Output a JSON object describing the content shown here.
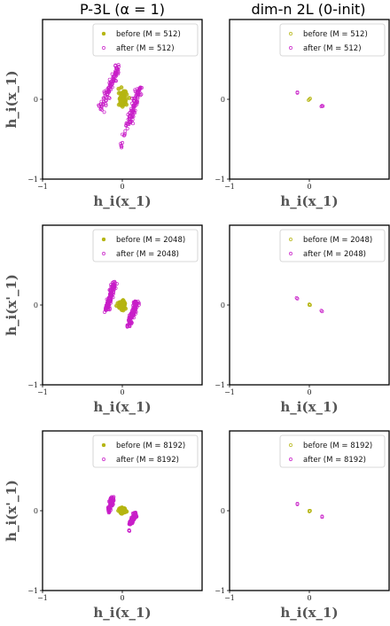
{
  "column_titles": [
    "P-3L (α = 1)",
    "dim-n 2L (0-init)"
  ],
  "colors": {
    "before": "#b5b511",
    "after": "#c81ec8"
  },
  "chart_data": [
    {
      "type": "scatter",
      "row": 0,
      "col": 0,
      "xlabel": "h_i(x_1)",
      "ylabel": "h_i(x_1)",
      "xlim": [
        -1,
        1
      ],
      "ylim": [
        -1,
        1
      ],
      "xticks": [
        "−1",
        "0"
      ],
      "yticks": [
        "−1",
        "0"
      ],
      "legend": {
        "placement": "top-right",
        "entries": [
          "before (M = 512)",
          "after (M = 512)"
        ]
      },
      "series": [
        {
          "name": "before (M = 512)",
          "kind": "blob",
          "center": [
            0.0,
            0.0
          ],
          "radius": [
            0.05,
            0.1
          ],
          "n": 120,
          "marker_size": 2.2
        },
        {
          "name": "after (M = 512)",
          "kind": "streaks",
          "streaks": [
            {
              "from": [
                -0.27,
                -0.13
              ],
              "to": [
                -0.04,
                0.43
              ],
              "jitter": 0.02,
              "n": 100
            },
            {
              "from": [
                0.08,
                -0.33
              ],
              "to": [
                0.22,
                0.16
              ],
              "jitter": 0.02,
              "n": 100
            },
            {
              "from": [
                -0.02,
                -0.64
              ],
              "to": [
                0.03,
                -0.4
              ],
              "jitter": 0.01,
              "n": 10
            }
          ]
        }
      ]
    },
    {
      "type": "scatter",
      "row": 0,
      "col": 1,
      "xlabel": "h_i(x_1)",
      "ylabel": "",
      "xlim": [
        -1,
        1
      ],
      "ylim": [
        -1,
        1
      ],
      "xticks": [
        "−1",
        "0"
      ],
      "yticks": [
        "−1",
        "0"
      ],
      "legend": {
        "placement": "top-right",
        "entries": [
          "before (M = 512)",
          "after (M = 512)"
        ]
      },
      "series": [
        {
          "name": "before (M = 512)",
          "kind": "points",
          "points": [
            [
              0.0,
              0.0
            ],
            [
              0.01,
              0.01
            ],
            [
              -0.01,
              -0.01
            ]
          ]
        },
        {
          "name": "after (M = 512)",
          "kind": "points",
          "points": [
            [
              -0.15,
              0.09
            ],
            [
              -0.15,
              0.08
            ],
            [
              0.16,
              -0.08
            ],
            [
              0.15,
              -0.09
            ],
            [
              0.17,
              -0.085
            ]
          ]
        }
      ]
    },
    {
      "type": "scatter",
      "row": 1,
      "col": 0,
      "xlabel": "h_i(x_1)",
      "ylabel": "h_i(x'_1)",
      "xlim": [
        -1,
        1
      ],
      "ylim": [
        -1,
        1
      ],
      "xticks": [
        "−1",
        "0"
      ],
      "yticks": [
        "−1",
        "0"
      ],
      "legend": {
        "placement": "top-right",
        "entries": [
          "before (M = 2048)",
          "after (M = 2048)"
        ]
      },
      "series": [
        {
          "name": "before (M = 2048)",
          "kind": "blob",
          "center": [
            0.0,
            0.0
          ],
          "radius": [
            0.04,
            0.06
          ],
          "n": 150,
          "marker_size": 2.2
        },
        {
          "name": "after (M = 2048)",
          "kind": "streaks",
          "streaks": [
            {
              "from": [
                -0.2,
                -0.06
              ],
              "to": [
                -0.1,
                0.28
              ],
              "jitter": 0.015,
              "n": 140
            },
            {
              "from": [
                0.08,
                -0.26
              ],
              "to": [
                0.18,
                0.05
              ],
              "jitter": 0.015,
              "n": 140
            }
          ]
        }
      ]
    },
    {
      "type": "scatter",
      "row": 1,
      "col": 1,
      "xlabel": "h_i(x_1)",
      "ylabel": "",
      "xlim": [
        -1,
        1
      ],
      "ylim": [
        -1,
        1
      ],
      "xticks": [
        "−1",
        "0"
      ],
      "yticks": [
        "−1",
        "0"
      ],
      "legend": {
        "placement": "top-right",
        "entries": [
          "before (M = 2048)",
          "after (M = 2048)"
        ]
      },
      "series": [
        {
          "name": "before (M = 2048)",
          "kind": "points",
          "points": [
            [
              0.0,
              0.0
            ],
            [
              0.01,
              0.0
            ],
            [
              0.0,
              0.01
            ]
          ]
        },
        {
          "name": "after (M = 2048)",
          "kind": "points",
          "points": [
            [
              -0.15,
              0.08
            ],
            [
              -0.16,
              0.09
            ],
            [
              0.16,
              -0.08
            ],
            [
              0.15,
              -0.07
            ]
          ]
        }
      ]
    },
    {
      "type": "scatter",
      "row": 2,
      "col": 0,
      "xlabel": "h_i(x_1)",
      "ylabel": "h_i(x'_1)",
      "xlim": [
        -1,
        1
      ],
      "ylim": [
        -1,
        1
      ],
      "xticks": [
        "−1",
        "0"
      ],
      "yticks": [
        "−1",
        "0"
      ],
      "legend": {
        "placement": "top-right",
        "entries": [
          "before (M = 8192)",
          "after (M = 8192)"
        ]
      },
      "series": [
        {
          "name": "before (M = 8192)",
          "kind": "blob",
          "center": [
            0.0,
            0.0
          ],
          "radius": [
            0.04,
            0.04
          ],
          "n": 120,
          "marker_size": 2.2
        },
        {
          "name": "after (M = 8192)",
          "kind": "streaks",
          "streaks": [
            {
              "from": [
                -0.17,
                -0.01
              ],
              "to": [
                -0.12,
                0.17
              ],
              "jitter": 0.012,
              "n": 110
            },
            {
              "from": [
                0.1,
                -0.17
              ],
              "to": [
                0.17,
                -0.02
              ],
              "jitter": 0.012,
              "n": 110
            },
            {
              "from": [
                0.08,
                -0.25
              ],
              "to": [
                0.09,
                -0.24
              ],
              "jitter": 0.005,
              "n": 3
            }
          ]
        }
      ]
    },
    {
      "type": "scatter",
      "row": 2,
      "col": 1,
      "xlabel": "h_i(x_1)",
      "ylabel": "",
      "xlim": [
        -1,
        1
      ],
      "ylim": [
        -1,
        1
      ],
      "xticks": [
        "−1",
        "0"
      ],
      "yticks": [
        "−1",
        "0"
      ],
      "legend": {
        "placement": "top-right",
        "entries": [
          "before (M = 8192)",
          "after (M = 8192)"
        ]
      },
      "series": [
        {
          "name": "before (M = 8192)",
          "kind": "points",
          "points": [
            [
              0.0,
              0.0
            ],
            [
              0.01,
              0.0
            ],
            [
              0.0,
              -0.01
            ]
          ]
        },
        {
          "name": "after (M = 8192)",
          "kind": "points",
          "points": [
            [
              -0.15,
              0.08
            ],
            [
              -0.15,
              0.09
            ],
            [
              0.16,
              -0.07
            ],
            [
              0.16,
              -0.08
            ]
          ]
        }
      ]
    }
  ]
}
